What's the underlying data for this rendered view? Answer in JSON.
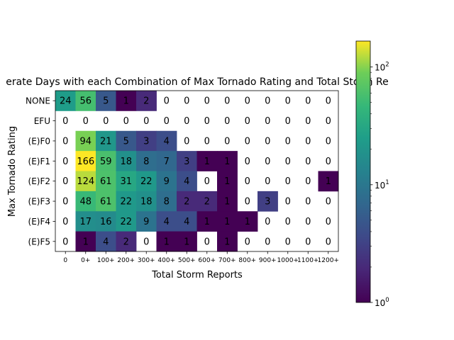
{
  "chart_data": {
    "type": "heatmap",
    "title": "erate Days with each Combination of Max Tornado Rating and Total Storm Re",
    "xlabel": "Total Storm Reports",
    "ylabel": "Max Tornado Rating",
    "x_categories": [
      "0",
      "0+",
      "100+",
      "200+",
      "300+",
      "400+",
      "500+",
      "600+",
      "700+",
      "800+",
      "900+",
      "1000+",
      "1100+",
      "1200+"
    ],
    "y_categories": [
      "NONE",
      "EFU",
      "(E)F0",
      "(E)F1",
      "(E)F2",
      "(E)F3",
      "(E)F4",
      "(E)F5"
    ],
    "values": [
      [
        24,
        56,
        5,
        1,
        2,
        0,
        0,
        0,
        0,
        0,
        0,
        0,
        0,
        0
      ],
      [
        0,
        0,
        0,
        0,
        0,
        0,
        0,
        0,
        0,
        0,
        0,
        0,
        0,
        0
      ],
      [
        0,
        94,
        21,
        5,
        3,
        4,
        0,
        0,
        0,
        0,
        0,
        0,
        0,
        0
      ],
      [
        0,
        166,
        59,
        18,
        8,
        7,
        3,
        1,
        1,
        0,
        0,
        0,
        0,
        0
      ],
      [
        0,
        124,
        61,
        31,
        22,
        9,
        4,
        0,
        1,
        0,
        0,
        0,
        0,
        1
      ],
      [
        0,
        48,
        61,
        22,
        18,
        8,
        2,
        2,
        1,
        0,
        3,
        0,
        0,
        0
      ],
      [
        0,
        17,
        16,
        22,
        9,
        4,
        4,
        1,
        1,
        1,
        0,
        0,
        0,
        0
      ],
      [
        0,
        1,
        4,
        2,
        0,
        1,
        1,
        0,
        1,
        0,
        0,
        0,
        0,
        0
      ]
    ],
    "colorbar": {
      "scale": "log",
      "range": [
        1,
        166
      ],
      "colormap": "viridis",
      "ticks": [
        {
          "value": 1,
          "base": "10",
          "exp": "0"
        },
        {
          "value": 10,
          "base": "10",
          "exp": "1"
        },
        {
          "value": 100,
          "base": "10",
          "exp": "2"
        }
      ]
    }
  }
}
